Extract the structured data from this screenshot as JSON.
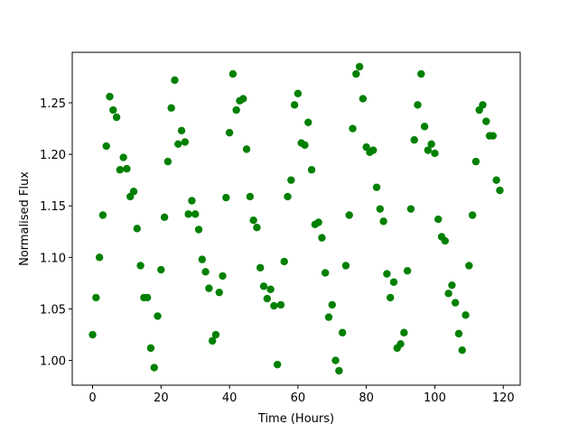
{
  "chart_data": {
    "type": "scatter",
    "xlabel": "Time (Hours)",
    "ylabel": "Normalised Flux",
    "color": "#008000",
    "x": [
      0,
      1,
      2,
      3,
      4,
      5,
      6,
      7,
      8,
      9,
      10,
      11,
      12,
      13,
      14,
      15,
      16,
      17,
      18,
      19,
      20,
      21,
      22,
      23,
      24,
      25,
      26,
      27,
      28,
      29,
      30,
      31,
      32,
      33,
      34,
      35,
      36,
      37,
      38,
      39,
      40,
      41,
      42,
      43,
      44,
      45,
      46,
      47,
      48,
      49,
      50,
      51,
      52,
      53,
      54,
      55,
      56,
      57,
      58,
      59,
      60,
      61,
      62,
      63,
      64,
      65,
      66,
      67,
      68,
      69,
      70,
      71,
      72,
      73,
      74,
      75,
      76,
      77,
      78,
      79,
      80,
      81,
      82,
      83,
      84,
      85,
      86,
      87,
      88,
      89,
      90,
      91,
      92,
      93,
      94,
      95,
      96,
      97,
      98,
      99,
      100,
      101,
      102,
      103,
      104,
      105,
      106,
      107,
      108,
      109,
      110,
      111,
      112,
      113,
      114,
      115,
      116,
      117,
      118,
      119
    ],
    "values": [
      1.025,
      1.061,
      1.1,
      1.141,
      1.208,
      1.256,
      1.243,
      1.236,
      1.185,
      1.197,
      1.186,
      1.159,
      1.164,
      1.128,
      1.092,
      1.061,
      1.061,
      1.012,
      0.993,
      1.043,
      1.088,
      1.139,
      1.193,
      1.245,
      1.272,
      1.21,
      1.223,
      1.212,
      1.142,
      1.155,
      1.142,
      1.127,
      1.098,
      1.086,
      1.07,
      1.019,
      1.025,
      1.066,
      1.082,
      1.158,
      1.221,
      1.278,
      1.243,
      1.252,
      1.254,
      1.205,
      1.159,
      1.136,
      1.129,
      1.09,
      1.072,
      1.06,
      1.069,
      1.053,
      0.996,
      1.054,
      1.096,
      1.159,
      1.175,
      1.248,
      1.259,
      1.211,
      1.209,
      1.231,
      1.185,
      1.132,
      1.134,
      1.119,
      1.085,
      1.042,
      1.054,
      1.0,
      0.99,
      1.027,
      1.092,
      1.141,
      1.225,
      1.278,
      1.285,
      1.254,
      1.207,
      1.202,
      1.204,
      1.168,
      1.147,
      1.135,
      1.084,
      1.061,
      1.076,
      1.012,
      1.016,
      1.027,
      1.087,
      1.147,
      1.214,
      1.248,
      1.278,
      1.227,
      1.204,
      1.21,
      1.201,
      1.137,
      1.12,
      1.116,
      1.065,
      1.073,
      1.056,
      1.026,
      1.01,
      1.044,
      1.092,
      1.141,
      1.193,
      1.243,
      1.248,
      1.232,
      1.218,
      1.218,
      1.175,
      1.165
    ],
    "xlim": [
      -5.95,
      124.95
    ],
    "xticks": [
      0,
      20,
      40,
      60,
      80,
      100,
      120
    ],
    "ylim": [
      0.976,
      1.299
    ],
    "yticks": [
      {
        "value": 1.0,
        "label": "1.00"
      },
      1.05,
      {
        "value": 1.1,
        "label": "1.10"
      },
      1.15,
      {
        "value": 1.2,
        "label": "1.20"
      },
      1.25
    ]
  }
}
